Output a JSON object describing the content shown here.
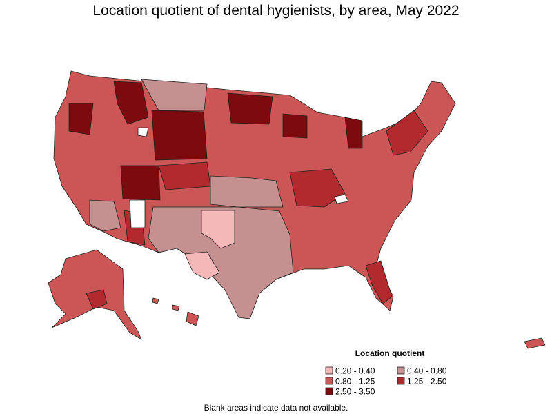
{
  "title": "Location quotient of dental hygienists, by area, May 2022",
  "legend": {
    "title": "Location quotient",
    "items": [
      {
        "label": "0.20 - 0.40",
        "color": "#f5b8b8"
      },
      {
        "label": "0.40 - 0.80",
        "color": "#c49090"
      },
      {
        "label": "0.80 - 1.25",
        "color": "#cc5656"
      },
      {
        "label": "1.25 - 2.50",
        "color": "#b02a2e"
      },
      {
        "label": "2.50 - 3.50",
        "color": "#7c0a0e"
      }
    ]
  },
  "footnote": "Blank areas indicate data not available."
}
